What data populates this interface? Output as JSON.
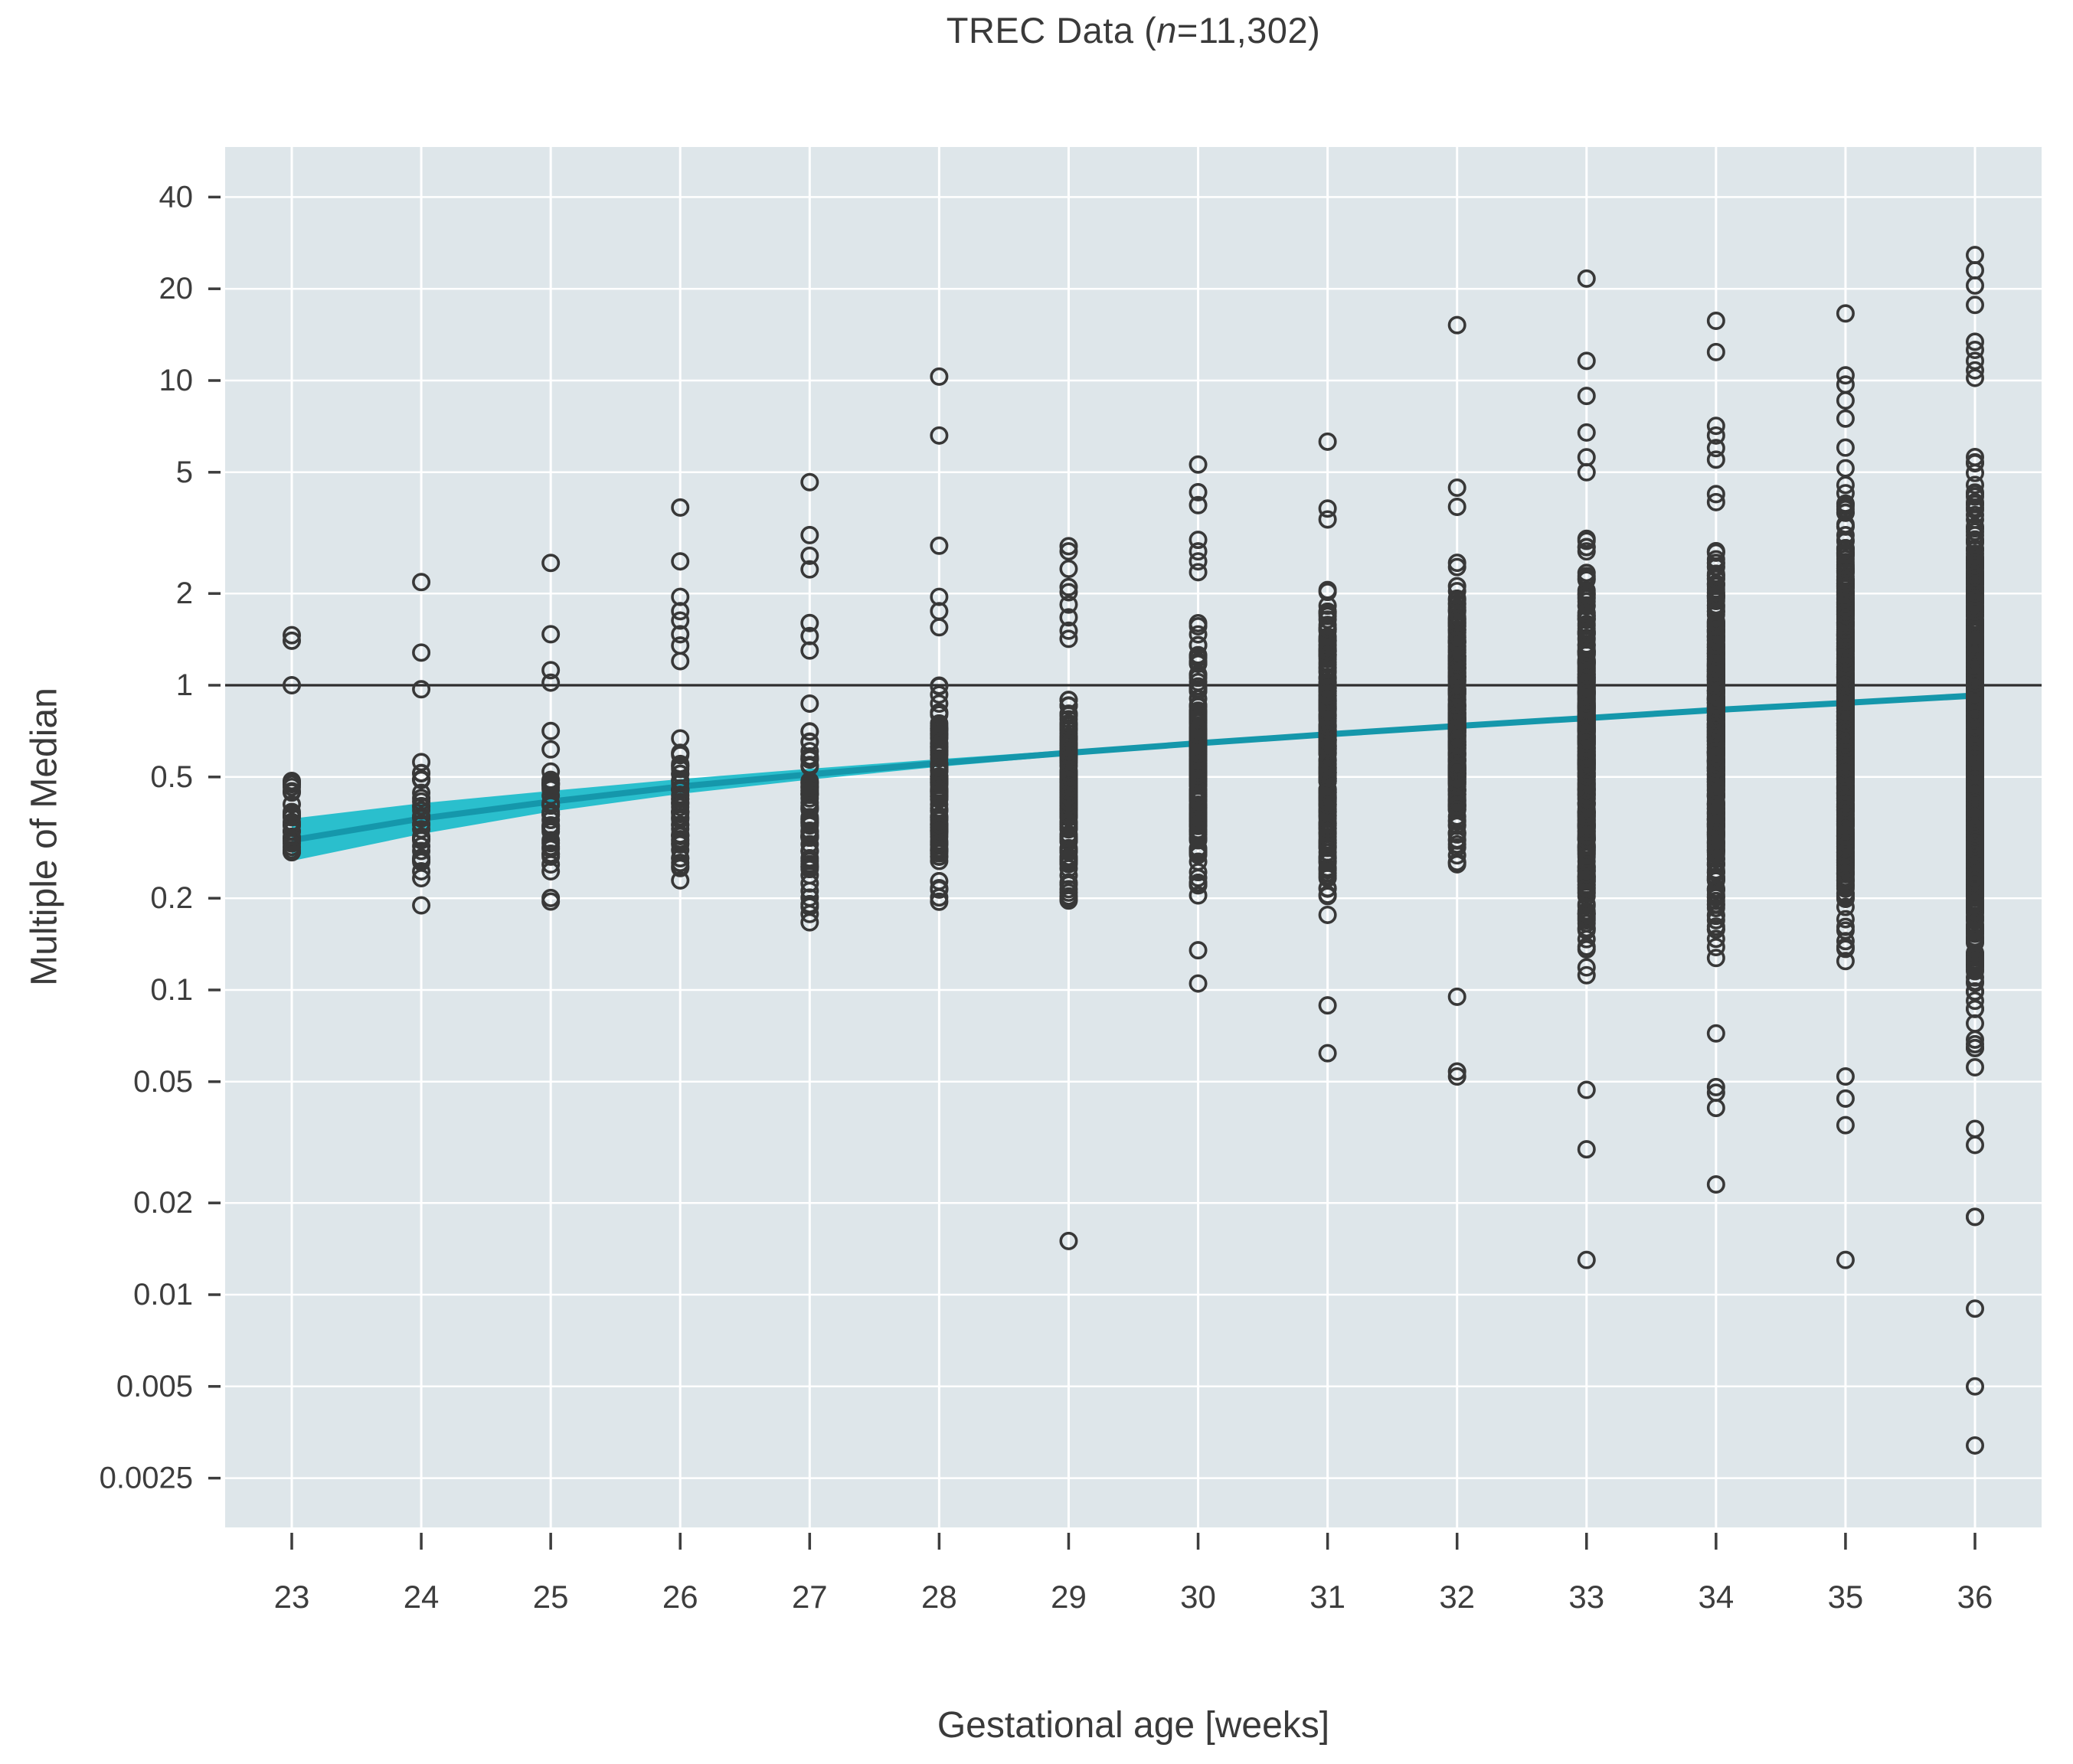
{
  "title": {
    "prefix": "TREC Data (",
    "n_italic": "n",
    "suffix": "=11,302)"
  },
  "axes": {
    "x_label": "Gestational age [weeks]",
    "y_label": "Multiple of Median",
    "x_tick_labels": [
      "23",
      "24",
      "25",
      "26",
      "27",
      "28",
      "29",
      "30",
      "31",
      "32",
      "33",
      "34",
      "35",
      "36"
    ],
    "y_tick_labels": [
      "40",
      "20",
      "10",
      "5",
      "2",
      "1",
      "0.5",
      "0.2",
      "0.1",
      "0.05",
      "0.02",
      "0.01",
      "0.005",
      "0.0025"
    ]
  },
  "colors": {
    "plot_bg": "#dee6ea",
    "grid": "#ffffff",
    "point_stroke": "#383838",
    "trend_line": "#1597ab",
    "trend_band": "#2abfcd",
    "reference_line": "#2e2e2e",
    "text": "#3d3d3d"
  },
  "chart_data": {
    "type": "scatter",
    "title": "TREC Data (n=11,302)",
    "xlabel": "Gestational age [weeks]",
    "ylabel": "Multiple of Median",
    "x_scale": "linear",
    "y_scale": "log",
    "x_range": [
      22.5,
      36.5
    ],
    "y_range": [
      0.0017,
      58
    ],
    "x_ticks": [
      23,
      24,
      25,
      26,
      27,
      28,
      29,
      30,
      31,
      32,
      33,
      34,
      35,
      36
    ],
    "y_ticks": [
      40,
      20,
      10,
      5,
      2,
      1,
      0.5,
      0.2,
      0.1,
      0.05,
      0.02,
      0.01,
      0.005,
      0.0025
    ],
    "grid": true,
    "legend": false,
    "n_total": 11302,
    "reference_line_y": 1,
    "trend": {
      "x": [
        23,
        24,
        25,
        26,
        27,
        28,
        29,
        30,
        31,
        32,
        33,
        34,
        35,
        36
      ],
      "fit": [
        0.31,
        0.365,
        0.415,
        0.465,
        0.51,
        0.555,
        0.6,
        0.645,
        0.69,
        0.735,
        0.78,
        0.83,
        0.875,
        0.925
      ],
      "ci_lower": [
        0.265,
        0.325,
        0.385,
        0.44,
        0.49,
        0.54,
        0.588,
        0.636,
        0.682,
        0.728,
        0.772,
        0.82,
        0.863,
        0.91
      ],
      "ci_upper": [
        0.365,
        0.41,
        0.45,
        0.492,
        0.532,
        0.572,
        0.613,
        0.655,
        0.698,
        0.742,
        0.788,
        0.84,
        0.887,
        0.94
      ]
    },
    "points_by_week": [
      {
        "week": 23,
        "n_dense": 26,
        "dense_range": [
          0.19,
          0.68
        ],
        "outliers_high": [
          1.0,
          1.4,
          1.46
        ],
        "outliers_low": []
      },
      {
        "week": 24,
        "n_dense": 32,
        "dense_range": [
          0.158,
          0.78
        ],
        "outliers_high": [
          0.97,
          1.28,
          2.18
        ],
        "outliers_low": []
      },
      {
        "week": 25,
        "n_dense": 36,
        "dense_range": [
          0.15,
          0.8
        ],
        "outliers_high": [
          1.02,
          1.12,
          1.47,
          2.52
        ],
        "outliers_low": []
      },
      {
        "week": 26,
        "n_dense": 52,
        "dense_range": [
          0.16,
          0.95
        ],
        "outliers_high": [
          1.2,
          1.35,
          1.47,
          1.63,
          1.75,
          1.95,
          2.55,
          3.83
        ],
        "outliers_low": []
      },
      {
        "week": 27,
        "n_dense": 72,
        "dense_range": [
          0.14,
          1.1
        ],
        "outliers_high": [
          1.3,
          1.45,
          1.6,
          2.4,
          2.66,
          3.11,
          4.64
        ],
        "outliers_low": []
      },
      {
        "week": 28,
        "n_dense": 105,
        "dense_range": [
          0.15,
          1.35
        ],
        "outliers_high": [
          1.55,
          1.75,
          1.95,
          2.87,
          6.6,
          10.3
        ],
        "outliers_low": []
      },
      {
        "week": 29,
        "n_dense": 135,
        "dense_range": [
          0.15,
          1.38
        ],
        "outliers_high": [
          1.42,
          1.51,
          1.67,
          1.84,
          2.02,
          2.1,
          2.41,
          2.75,
          2.86
        ],
        "outliers_low": [
          0.015
        ]
      },
      {
        "week": 30,
        "n_dense": 195,
        "dense_range": [
          0.16,
          2.0
        ],
        "outliers_high": [
          2.35,
          2.55,
          2.75,
          3.0,
          3.9,
          4.3,
          5.3
        ],
        "outliers_low": [
          0.105,
          0.135
        ]
      },
      {
        "week": 31,
        "n_dense": 250,
        "dense_range": [
          0.14,
          3.0
        ],
        "outliers_high": [
          3.5,
          3.8,
          6.3
        ],
        "outliers_low": [
          0.062,
          0.089
        ]
      },
      {
        "week": 32,
        "n_dense": 300,
        "dense_range": [
          0.18,
          3.2
        ],
        "outliers_high": [
          3.85,
          4.45,
          15.2
        ],
        "outliers_low": [
          0.052,
          0.054,
          0.095
        ]
      },
      {
        "week": 33,
        "n_dense": 380,
        "dense_range": [
          0.085,
          4.5
        ],
        "outliers_high": [
          5.0,
          5.6,
          6.75,
          8.9,
          11.6,
          21.6
        ],
        "outliers_low": [
          0.013,
          0.03,
          0.047
        ]
      },
      {
        "week": 34,
        "n_dense": 470,
        "dense_range": [
          0.1,
          5.0
        ],
        "outliers_high": [
          5.5,
          6.0,
          6.6,
          7.1,
          12.4,
          15.7
        ],
        "outliers_low": [
          0.023,
          0.041,
          0.046,
          0.048,
          0.072
        ]
      },
      {
        "week": 35,
        "n_dense": 560,
        "dense_range": [
          0.09,
          6.7
        ],
        "outliers_high": [
          7.5,
          8.6,
          9.7,
          10.4,
          16.6
        ],
        "outliers_low": [
          0.013,
          0.036,
          0.044,
          0.052
        ]
      },
      {
        "week": 36,
        "n_dense": 700,
        "dense_range": [
          0.045,
          9.4
        ],
        "outliers_high": [
          10.2,
          10.8,
          11.6,
          12.6,
          13.4,
          17.7,
          20.5,
          23.0,
          25.8
        ],
        "outliers_low": [
          0.0032,
          0.005,
          0.009,
          0.018,
          0.018,
          0.031,
          0.035
        ]
      }
    ]
  }
}
